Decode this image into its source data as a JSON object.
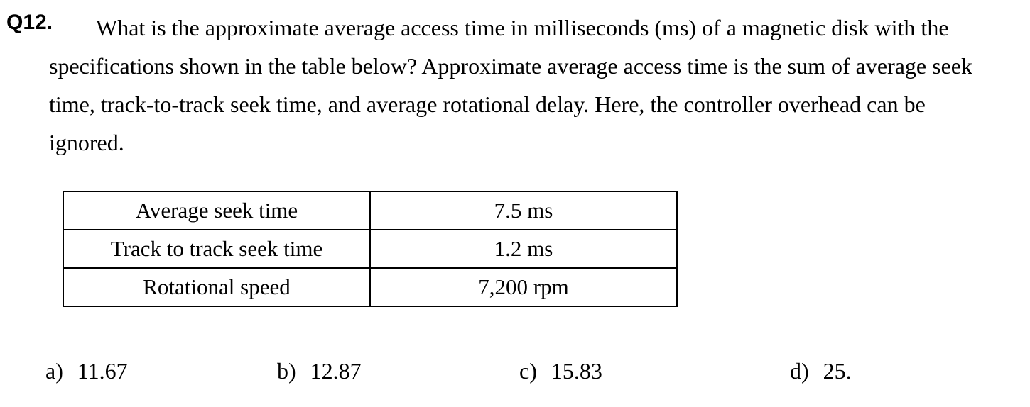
{
  "question": {
    "number": "Q12.",
    "text": "What is the approximate average access time in milliseconds (ms) of a magnetic disk with the specifications shown in the table below? Approximate average access time is the sum of average seek time, track-to-track seek time, and average rotational delay. Here, the controller overhead can be ignored."
  },
  "spec_table": {
    "rows": [
      {
        "label": "Average seek time",
        "value": "7.5 ms"
      },
      {
        "label": "Track to track seek time",
        "value": "1.2 ms"
      },
      {
        "label": "Rotational speed",
        "value": "7,200 rpm"
      }
    ]
  },
  "options": [
    {
      "letter": "a)",
      "value": "11.67"
    },
    {
      "letter": "b)",
      "value": "12.87"
    },
    {
      "letter": "c)",
      "value": "15.83"
    },
    {
      "letter": "d)",
      "value": "25."
    }
  ]
}
